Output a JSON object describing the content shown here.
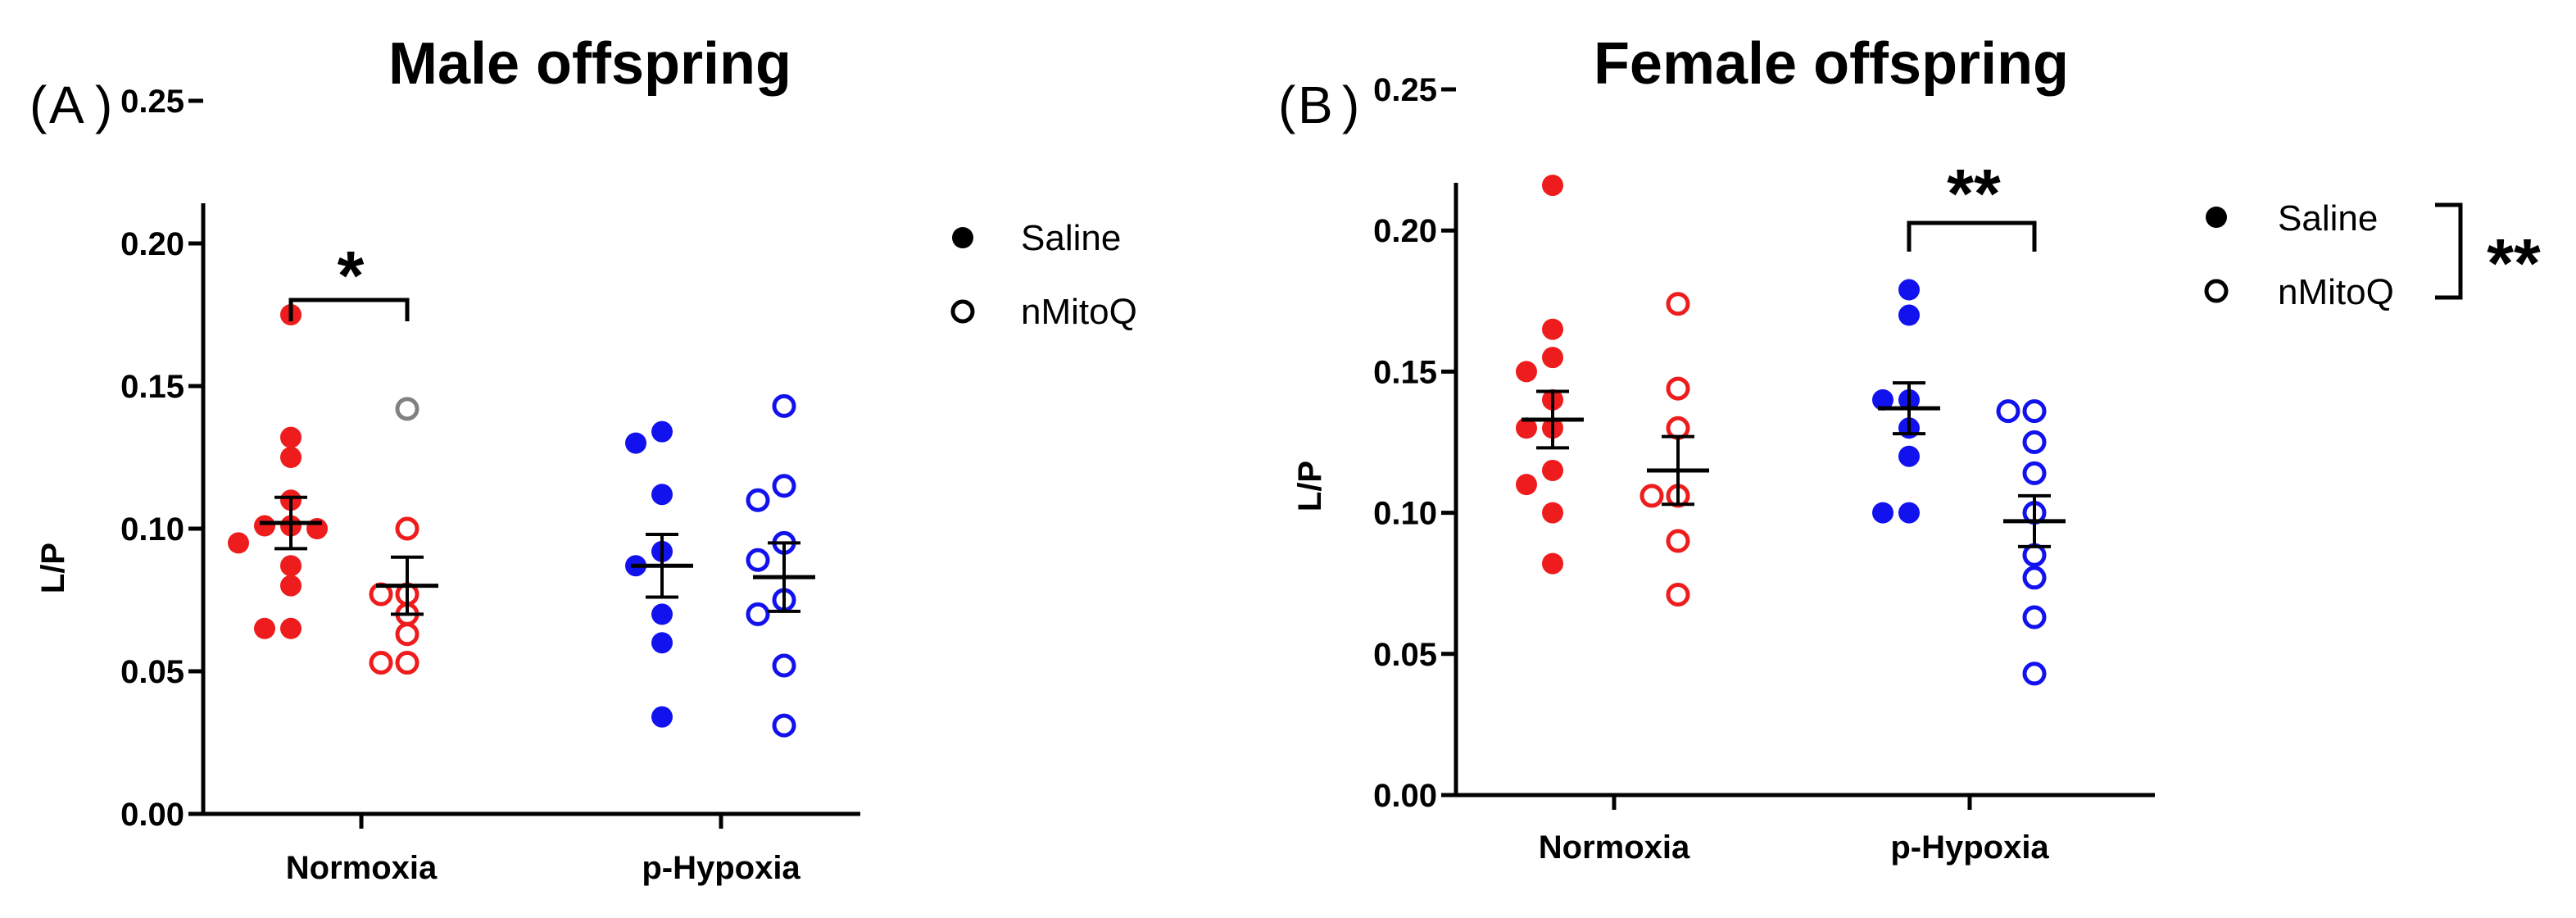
{
  "panels": [
    {
      "label": "A",
      "title": "Male offspring"
    },
    {
      "label": "B",
      "title": "Female offspring"
    }
  ],
  "legend": {
    "saline": "Saline",
    "nmitoq": "nMitoQ",
    "sig": "**"
  },
  "colors": {
    "normoxia": "#ee1c1c",
    "hypoxia": "#1212ee",
    "mean": "#000000",
    "outlier": "#808080"
  },
  "chart_data": [
    {
      "type": "scatter",
      "title": "Male offspring",
      "ylabel": "L/P",
      "ylim": [
        0,
        0.25
      ],
      "yticks": [
        "0.00",
        "0.05",
        "0.10",
        "0.15",
        "0.20",
        "0.25"
      ],
      "categories": [
        "Normoxia",
        "p-Hypoxia"
      ],
      "series": [
        {
          "name": "Saline",
          "category": "Normoxia",
          "filled": true,
          "values": [
            0.175,
            0.132,
            0.125,
            0.11,
            0.101,
            0.101,
            0.1,
            0.095,
            0.087,
            0.08,
            0.065,
            0.065
          ],
          "mean": 0.102,
          "sem": 0.009
        },
        {
          "name": "nMitoQ",
          "category": "Normoxia",
          "filled": false,
          "values": [
            0.142,
            0.1,
            0.077,
            0.077,
            0.07,
            0.063,
            0.053,
            0.053
          ],
          "outlier_index": 0,
          "mean": 0.08,
          "sem": 0.01
        },
        {
          "name": "Saline",
          "category": "p-Hypoxia",
          "filled": true,
          "values": [
            0.134,
            0.13,
            0.112,
            0.092,
            0.087,
            0.07,
            0.06,
            0.034
          ],
          "mean": 0.087,
          "sem": 0.011
        },
        {
          "name": "nMitoQ",
          "category": "p-Hypoxia",
          "filled": false,
          "values": [
            0.143,
            0.115,
            0.11,
            0.095,
            0.089,
            0.075,
            0.07,
            0.052,
            0.031
          ],
          "mean": 0.083,
          "sem": 0.012
        }
      ],
      "annotations": [
        {
          "text": "*",
          "between": [
            "Normoxia Saline",
            "Normoxia nMitoQ"
          ]
        }
      ],
      "legend_position": "top-right"
    },
    {
      "type": "scatter",
      "title": "Female offspring",
      "ylabel": "L/P",
      "ylim": [
        0,
        0.25
      ],
      "yticks": [
        "0.00",
        "0.05",
        "0.10",
        "0.15",
        "0.20",
        "0.25"
      ],
      "categories": [
        "Normoxia",
        "p-Hypoxia"
      ],
      "series": [
        {
          "name": "Saline",
          "category": "Normoxia",
          "filled": true,
          "values": [
            0.216,
            0.165,
            0.155,
            0.15,
            0.14,
            0.13,
            0.13,
            0.115,
            0.11,
            0.1,
            0.082
          ],
          "mean": 0.133,
          "sem": 0.01
        },
        {
          "name": "nMitoQ",
          "category": "Normoxia",
          "filled": false,
          "values": [
            0.174,
            0.144,
            0.13,
            0.106,
            0.106,
            0.09,
            0.071
          ],
          "mean": 0.115,
          "sem": 0.012
        },
        {
          "name": "Saline",
          "category": "p-Hypoxia",
          "filled": true,
          "values": [
            0.179,
            0.17,
            0.14,
            0.14,
            0.13,
            0.12,
            0.1,
            0.1
          ],
          "mean": 0.137,
          "sem": 0.009
        },
        {
          "name": "nMitoQ",
          "category": "p-Hypoxia",
          "filled": false,
          "values": [
            0.136,
            0.136,
            0.125,
            0.114,
            0.1,
            0.085,
            0.077,
            0.063,
            0.043
          ],
          "mean": 0.097,
          "sem": 0.009
        }
      ],
      "annotations": [
        {
          "text": "**",
          "between": [
            "p-Hypoxia Saline",
            "p-Hypoxia nMitoQ"
          ]
        },
        {
          "text": "**",
          "between": [
            "Saline",
            "nMitoQ"
          ],
          "location": "legend"
        }
      ],
      "legend_position": "top-right"
    }
  ]
}
